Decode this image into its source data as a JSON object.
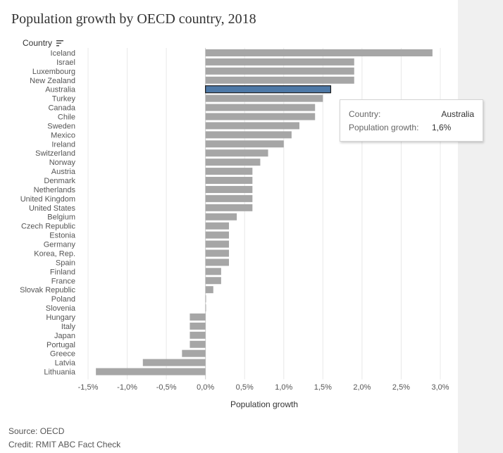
{
  "page": {
    "title": "Population growth by OECD country, 2018",
    "source": "Source: OECD",
    "credit": "Credit: RMIT ABC Fact Check"
  },
  "tooltip": {
    "country_key": "Country:",
    "country_value": "Australia",
    "growth_key": "Population growth:",
    "growth_value": "1,6%"
  },
  "colors": {
    "bar": "#a6a6a6",
    "highlight": "#4e79a7",
    "highlight_border": "#1a1a1a",
    "gridline": "#e8e8e8",
    "zero_line": "#cccccc"
  },
  "chart_data": {
    "type": "bar",
    "orientation": "horizontal",
    "title": "Population growth by OECD country, 2018",
    "category_header": "Country",
    "xlabel": "Population growth",
    "xlim": [
      -1.5,
      3.0
    ],
    "ticks": [
      -1.5,
      -1.0,
      -0.5,
      0.0,
      0.5,
      1.0,
      1.5,
      2.0,
      2.5,
      3.0
    ],
    "tick_labels": [
      "-1,5%",
      "-1,0%",
      "-0,5%",
      "0,0%",
      "0,5%",
      "1,0%",
      "1,5%",
      "2,0%",
      "2,5%",
      "3,0%"
    ],
    "highlighted": "Australia",
    "categories": [
      "Iceland",
      "Israel",
      "Luxembourg",
      "New Zealand",
      "Australia",
      "Turkey",
      "Canada",
      "Chile",
      "Sweden",
      "Mexico",
      "Ireland",
      "Switzerland",
      "Norway",
      "Austria",
      "Denmark",
      "Netherlands",
      "United Kingdom",
      "United States",
      "Belgium",
      "Czech Republic",
      "Estonia",
      "Germany",
      "Korea, Rep.",
      "Spain",
      "Finland",
      "France",
      "Slovak Republic",
      "Poland",
      "Slovenia",
      "Hungary",
      "Italy",
      "Japan",
      "Portugal",
      "Greece",
      "Latvia",
      "Lithuania"
    ],
    "values": [
      2.9,
      1.9,
      1.9,
      1.9,
      1.6,
      1.5,
      1.4,
      1.4,
      1.2,
      1.1,
      1.0,
      0.8,
      0.7,
      0.6,
      0.6,
      0.6,
      0.6,
      0.6,
      0.4,
      0.3,
      0.3,
      0.3,
      0.3,
      0.3,
      0.2,
      0.2,
      0.1,
      0.0,
      0.0,
      -0.2,
      -0.2,
      -0.2,
      -0.2,
      -0.3,
      -0.8,
      -1.4
    ]
  }
}
